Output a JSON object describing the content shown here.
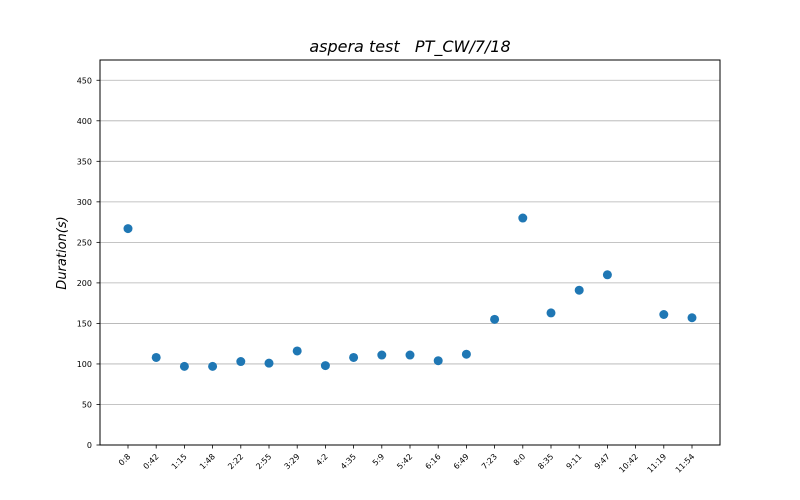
{
  "chart_data": {
    "type": "scatter",
    "title": "aspera test   PT_CW/7/18",
    "xlabel": "",
    "ylabel": "Duration(s)",
    "categories": [
      "0:8",
      "0:42",
      "1:15",
      "1:48",
      "2:22",
      "2:55",
      "3:29",
      "4:2",
      "4:35",
      "5:9",
      "5:42",
      "6:16",
      "6:49",
      "7:23",
      "8:0",
      "8:35",
      "9:11",
      "9:47",
      "10:42",
      "11:19",
      "11:54"
    ],
    "values": [
      267,
      108,
      97,
      97,
      103,
      101,
      116,
      98,
      108,
      111,
      111,
      104,
      112,
      155,
      280,
      163,
      191,
      210,
      null,
      161,
      157
    ],
    "ylim": [
      0,
      475
    ],
    "yticks": [
      0,
      50,
      100,
      150,
      200,
      250,
      300,
      350,
      400,
      450
    ],
    "grid": "y-axis horizontal",
    "marker_color": "#1f77b4"
  }
}
